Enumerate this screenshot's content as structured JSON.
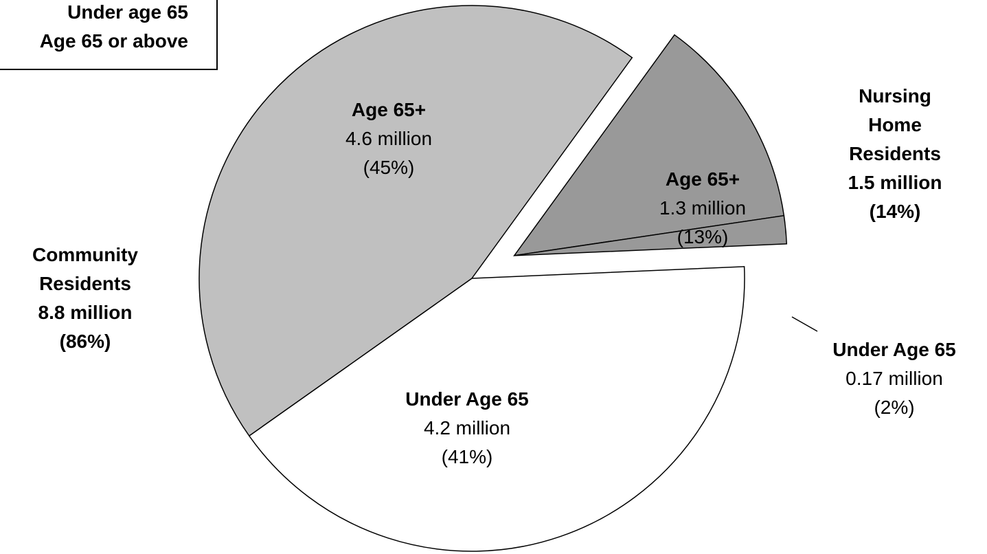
{
  "legend": {
    "items": [
      {
        "label": "Under age 65"
      },
      {
        "label": "Age 65 or above"
      }
    ]
  },
  "groups": {
    "community": {
      "name_line1": "Community",
      "name_line2": "Residents",
      "total": "8.8 million",
      "percent": "(86%)"
    },
    "nursing": {
      "name_line1": "Nursing",
      "name_line2": "Home",
      "name_line3": "Residents",
      "total": "1.5 million",
      "percent": "(14%)"
    }
  },
  "slice_labels": {
    "community_65plus": {
      "label": "Age 65+",
      "value": "4.6 million",
      "percent": "(45%)"
    },
    "community_under65": {
      "label": "Under Age 65",
      "value": "4.2 million",
      "percent": "(41%)"
    },
    "nursing_65plus": {
      "label": "Age 65+",
      "value": "1.3 million",
      "percent": "(13%)"
    },
    "nursing_under65": {
      "label": "Under Age 65",
      "value": "0.17 million",
      "percent": "(2%)"
    }
  },
  "chart_data": {
    "type": "pie",
    "title": "",
    "slices": [
      {
        "group": "Nursing Home Residents",
        "label": "Age 65+",
        "value": 1.3,
        "percent": 13,
        "color": "#999999",
        "exploded": true
      },
      {
        "group": "Nursing Home Residents",
        "label": "Under Age 65",
        "value": 0.17,
        "percent": 2,
        "color": "#999999",
        "exploded": true
      },
      {
        "group": "Community Residents",
        "label": "Under Age 65",
        "value": 4.2,
        "percent": 41,
        "color": "#ffffff",
        "exploded": false
      },
      {
        "group": "Community Residents",
        "label": "Age 65+",
        "value": 4.6,
        "percent": 45,
        "color": "#c0c0c0",
        "exploded": false
      }
    ],
    "units": "million"
  },
  "colors": {
    "community_65plus": "#c0c0c0",
    "community_under65": "#ffffff",
    "nursing": "#999999",
    "outline": "#000000"
  }
}
